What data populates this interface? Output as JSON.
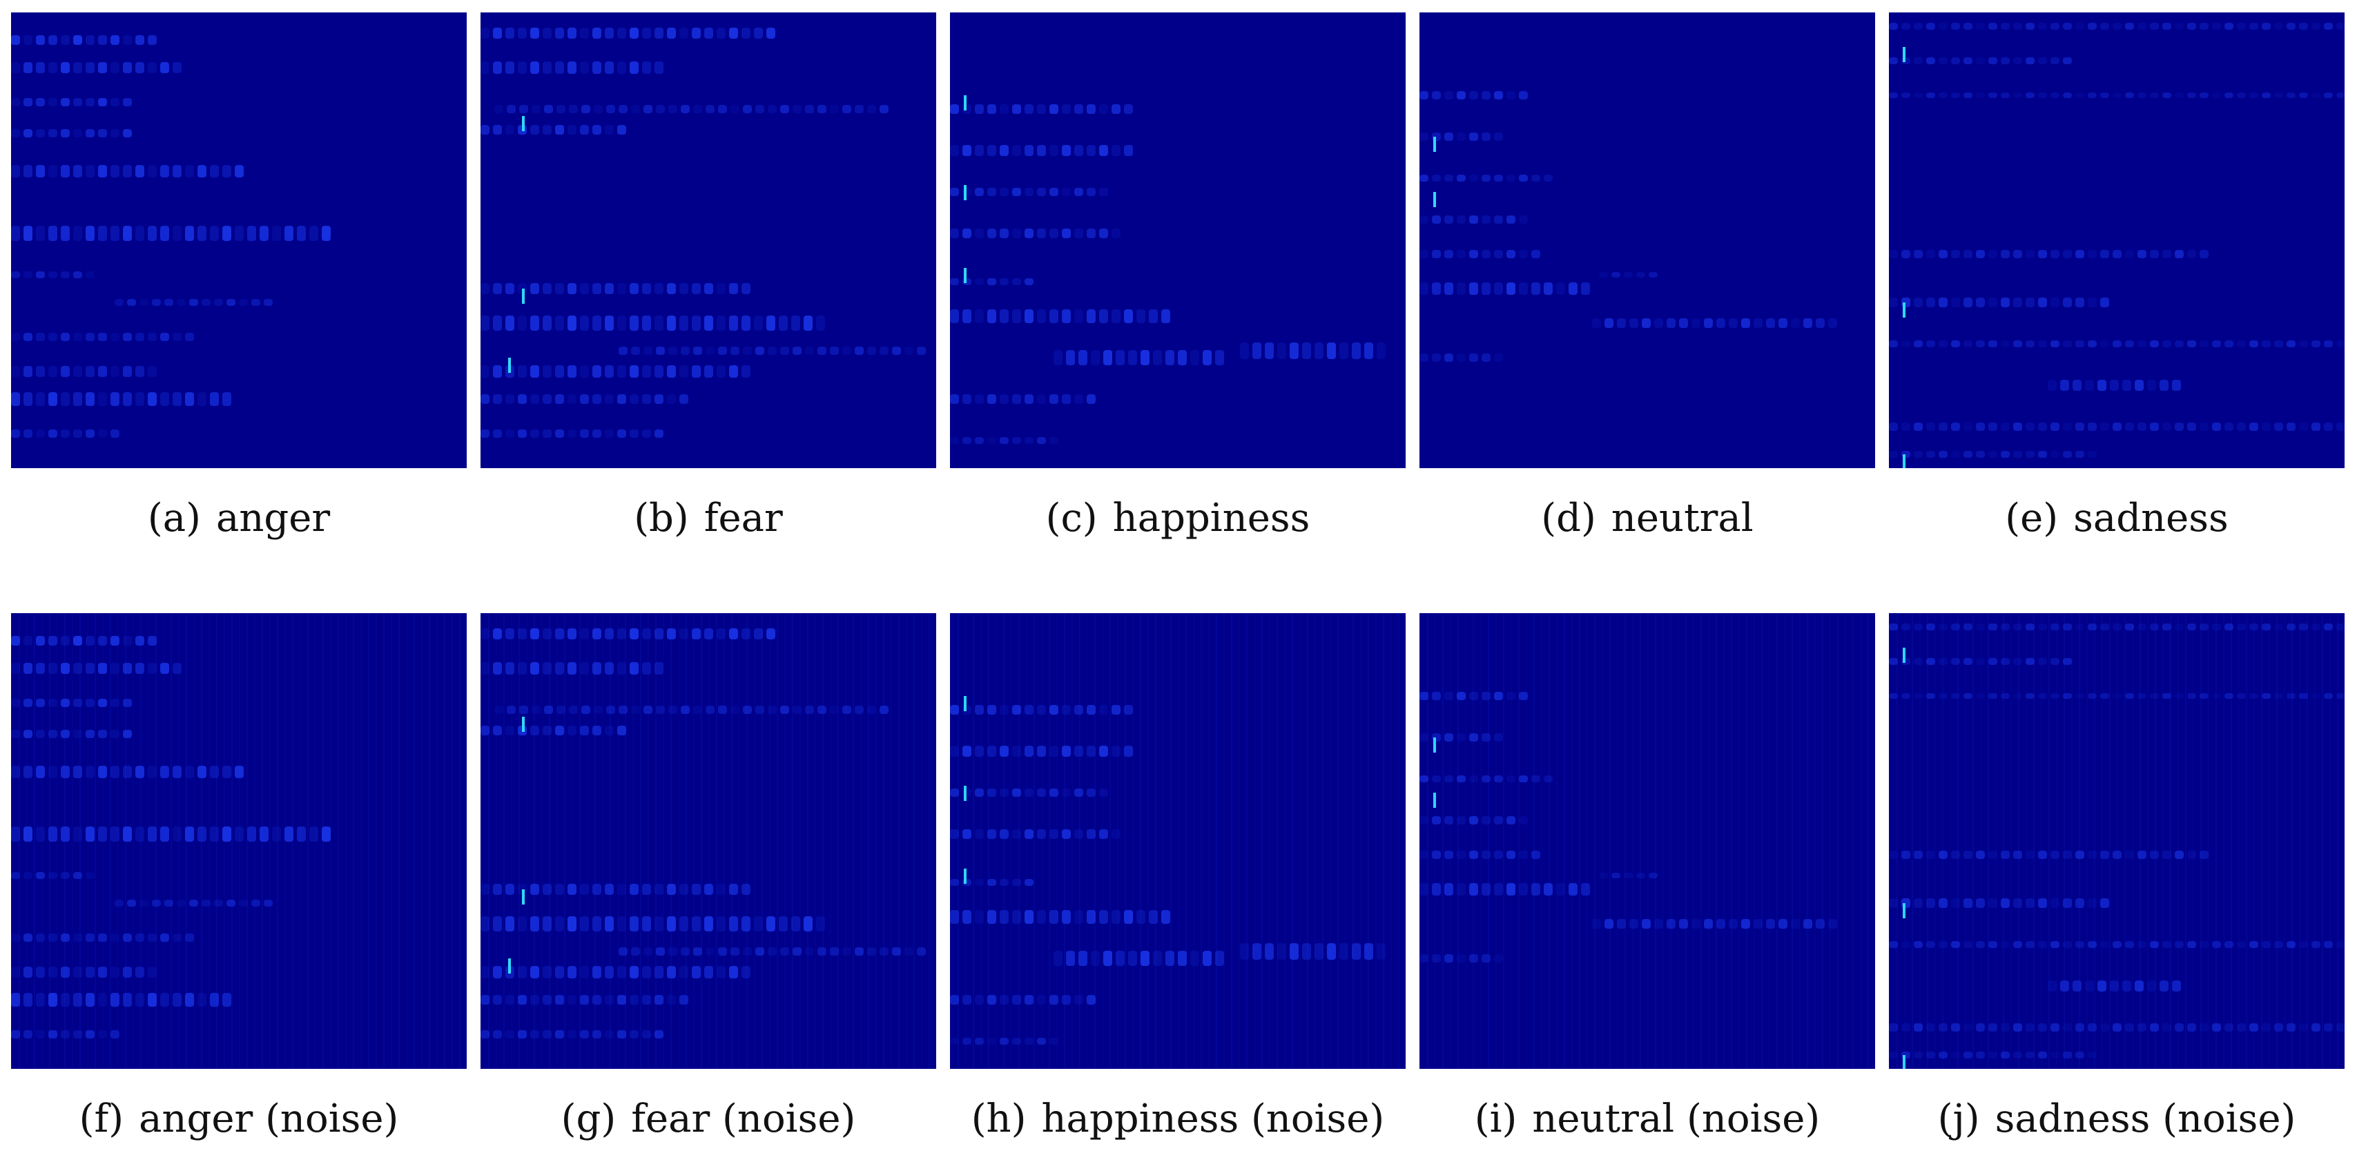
{
  "colors": {
    "background": "#00008b",
    "harmonic": "#1d3cf5",
    "peak": "#2fd9ff",
    "caption_text": "#111111"
  },
  "panels": [
    {
      "label": "(a)",
      "title": "anger",
      "noise": false
    },
    {
      "label": "(b)",
      "title": "fear",
      "noise": false
    },
    {
      "label": "(c)",
      "title": "happiness",
      "noise": false
    },
    {
      "label": "(d)",
      "title": "neutral",
      "noise": false
    },
    {
      "label": "(e)",
      "title": "sadness",
      "noise": false
    },
    {
      "label": "(f)",
      "title": "anger (noise)",
      "noise": true
    },
    {
      "label": "(g)",
      "title": "fear (noise)",
      "noise": true
    },
    {
      "label": "(h)",
      "title": "happiness (noise)",
      "noise": true
    },
    {
      "label": "(i)",
      "title": "neutral (noise)",
      "noise": true
    },
    {
      "label": "(j)",
      "title": "sadness (noise)",
      "noise": true
    }
  ]
}
